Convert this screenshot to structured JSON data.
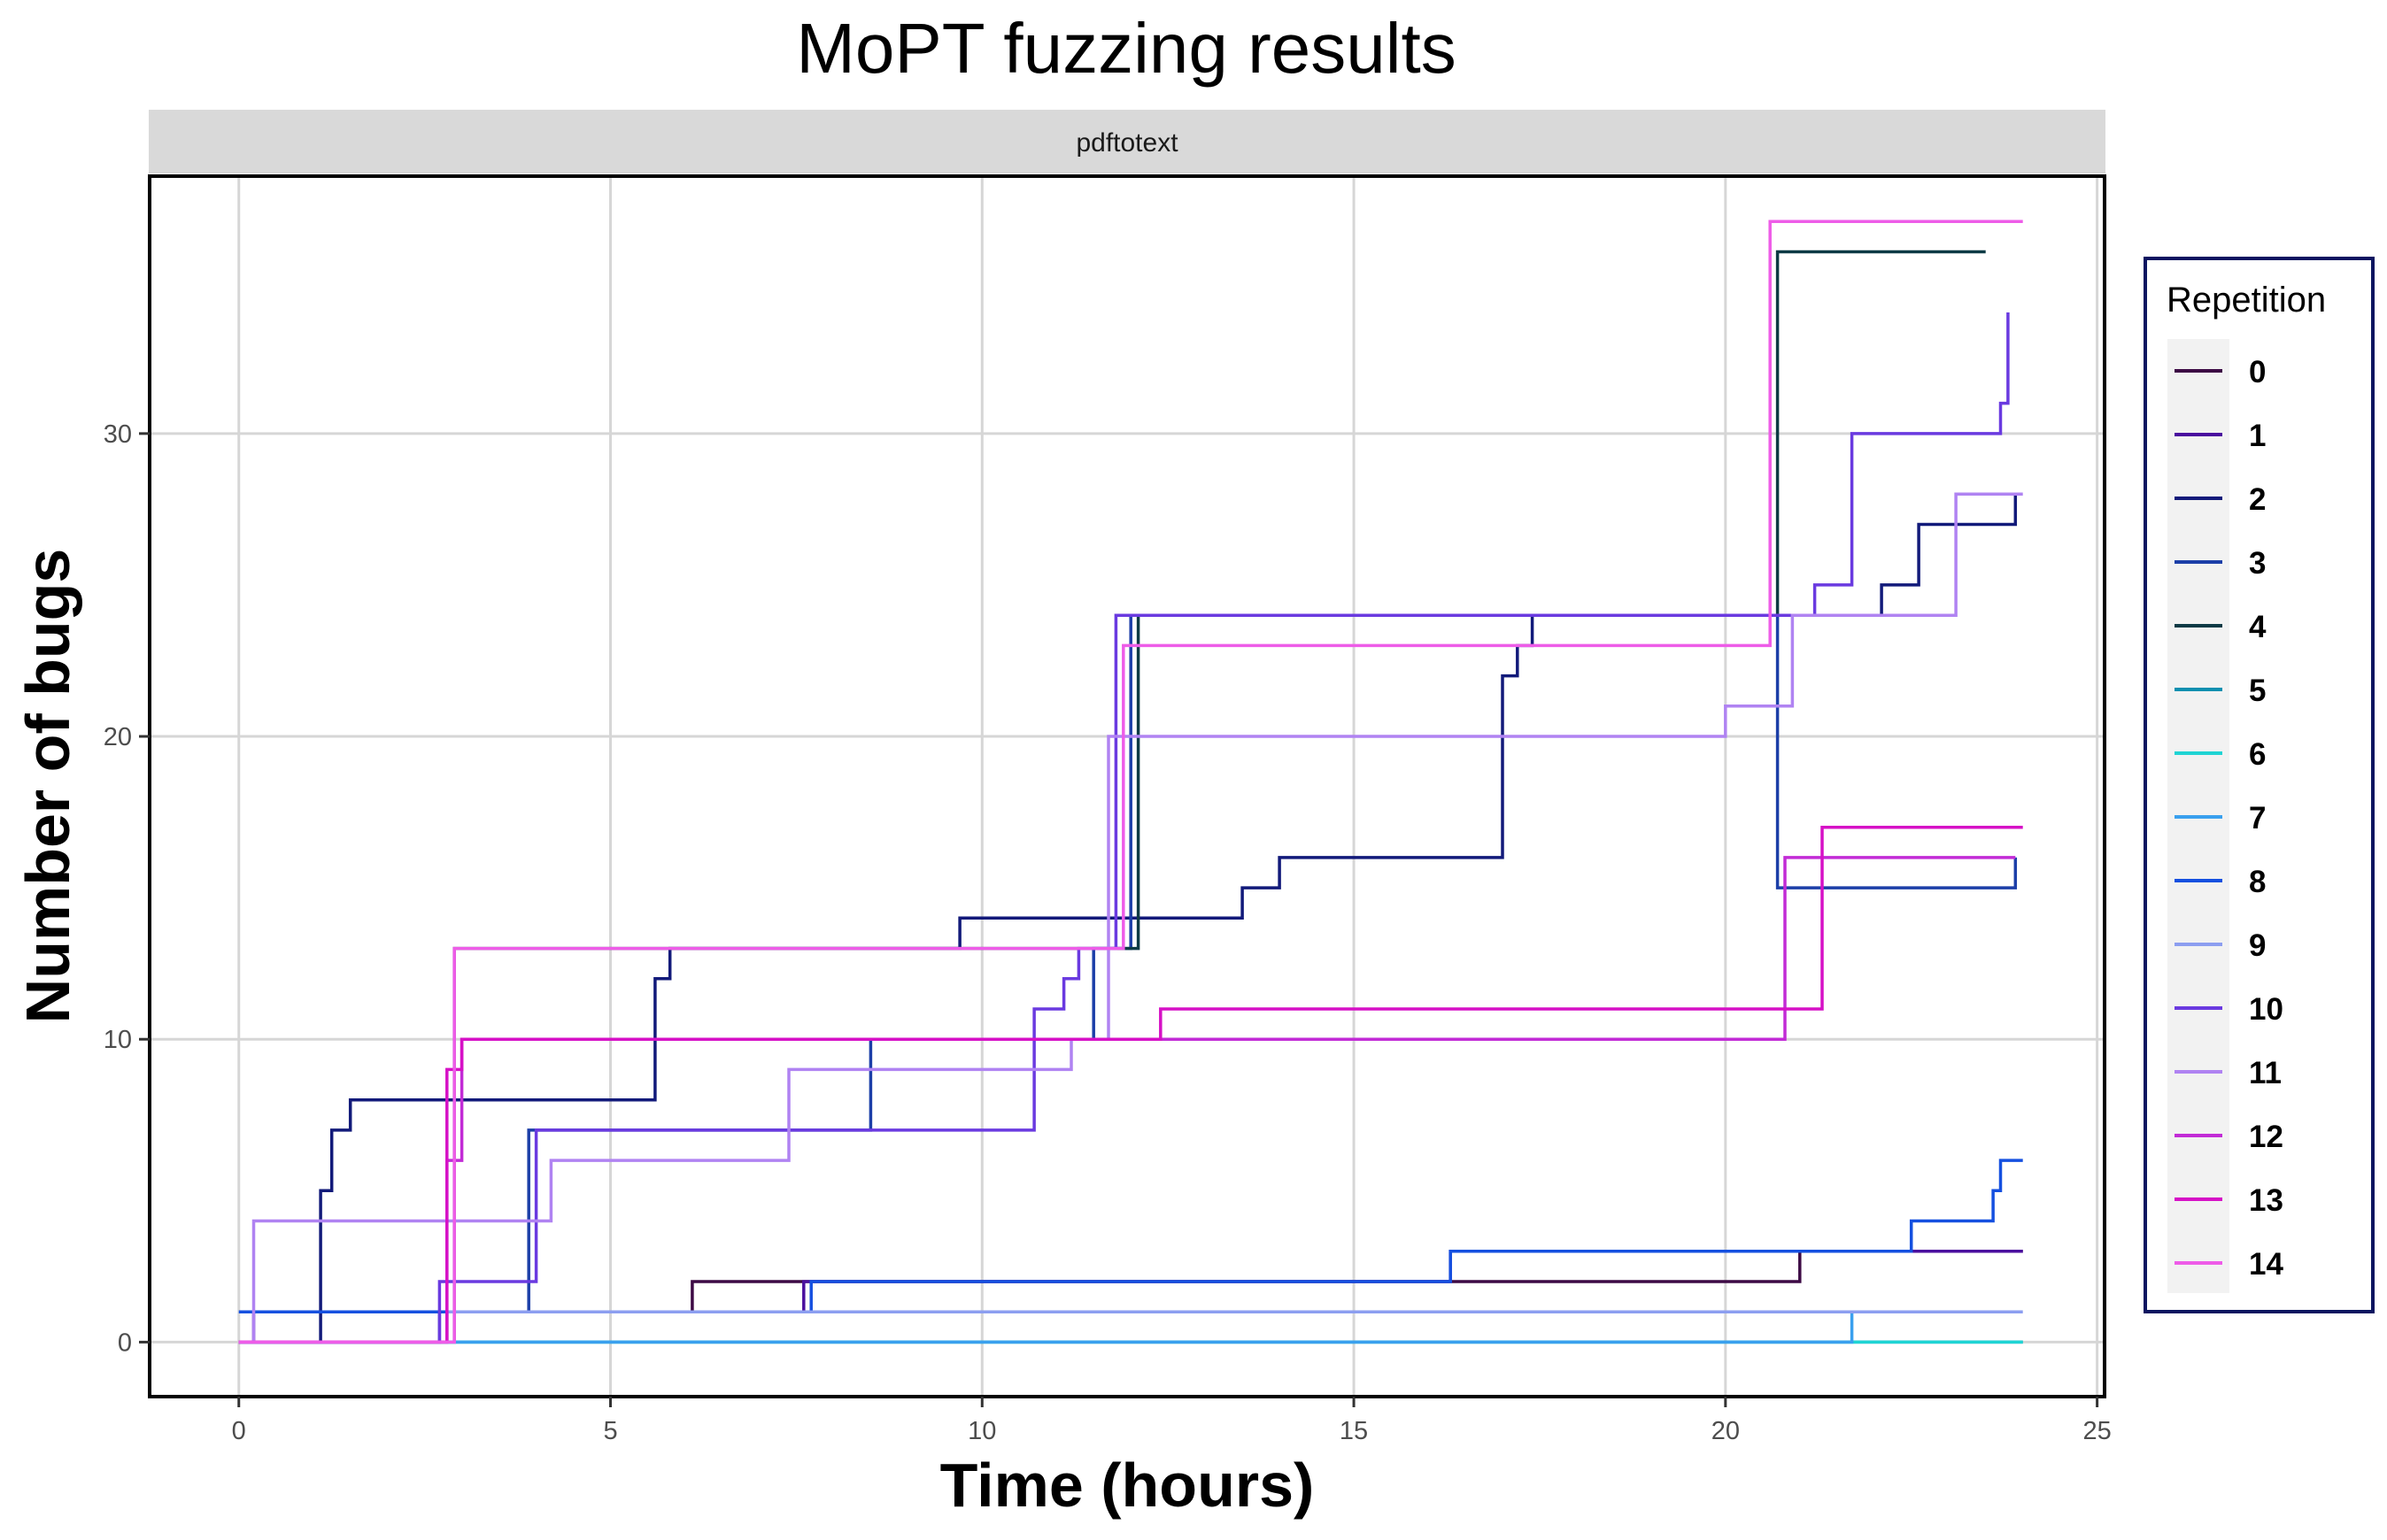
{
  "chart_data": {
    "type": "line",
    "step": true,
    "title": "MoPT fuzzing results",
    "facet_label": "pdftotext",
    "xlabel": "Time (hours)",
    "ylabel": "Number of bugs",
    "xlim": [
      -1.2,
      25.1
    ],
    "ylim": [
      -1.8,
      38.5
    ],
    "x_ticks": [
      0,
      5,
      10,
      15,
      20,
      25
    ],
    "y_ticks": [
      0,
      10,
      20,
      30
    ],
    "grid": true,
    "legend": {
      "title": "Repetition",
      "position": "right"
    },
    "series": [
      {
        "name": "0",
        "color": "#3d0a45",
        "points": [
          [
            0,
            0
          ],
          [
            2.8,
            1
          ],
          [
            6.1,
            2
          ],
          [
            21.0,
            3
          ],
          [
            24.0,
            3
          ]
        ]
      },
      {
        "name": "1",
        "color": "#4a0e9e",
        "points": [
          [
            0,
            0
          ],
          [
            0.2,
            1
          ],
          [
            7.6,
            2
          ],
          [
            16.3,
            3
          ],
          [
            24.0,
            3
          ]
        ]
      },
      {
        "name": "2",
        "color": "#121a7a",
        "points": [
          [
            0,
            0
          ],
          [
            1.1,
            5
          ],
          [
            1.25,
            7
          ],
          [
            1.5,
            8
          ],
          [
            5.6,
            12
          ],
          [
            5.8,
            13
          ],
          [
            9.7,
            14
          ],
          [
            13.5,
            15
          ],
          [
            14.0,
            16
          ],
          [
            17.0,
            22
          ],
          [
            17.2,
            23
          ],
          [
            17.4,
            24
          ],
          [
            22.1,
            25
          ],
          [
            22.6,
            27
          ],
          [
            23.9,
            28
          ]
        ]
      },
      {
        "name": "3",
        "color": "#1c3fa8",
        "points": [
          [
            0,
            0
          ],
          [
            2.7,
            1
          ],
          [
            3.9,
            7
          ],
          [
            8.5,
            10
          ],
          [
            11.5,
            13
          ],
          [
            12.0,
            24
          ],
          [
            20.7,
            15
          ],
          [
            23.9,
            16
          ]
        ]
      },
      {
        "name": "4",
        "color": "#0d3a45",
        "points": [
          [
            0,
            0
          ],
          [
            2.9,
            13
          ],
          [
            12.0,
            13
          ],
          [
            12.1,
            24
          ],
          [
            20.6,
            24
          ],
          [
            20.7,
            36
          ],
          [
            23.5,
            36
          ]
        ]
      },
      {
        "name": "5",
        "color": "#0b8fb0",
        "points": [
          [
            0,
            0
          ],
          [
            24.0,
            0
          ]
        ]
      },
      {
        "name": "6",
        "color": "#1fd4d4",
        "points": [
          [
            0,
            0
          ],
          [
            24.0,
            0
          ]
        ]
      },
      {
        "name": "7",
        "color": "#3aa0ee",
        "points": [
          [
            0,
            0
          ],
          [
            21.7,
            1
          ],
          [
            23.7,
            1
          ]
        ]
      },
      {
        "name": "8",
        "color": "#1550e0",
        "points": [
          [
            0,
            1
          ],
          [
            2.2,
            1
          ],
          [
            7.7,
            2
          ],
          [
            16.3,
            3
          ],
          [
            22.5,
            4
          ],
          [
            23.6,
            5
          ],
          [
            23.7,
            6
          ],
          [
            24.0,
            6
          ]
        ]
      },
      {
        "name": "9",
        "color": "#8c9ef0",
        "points": [
          [
            0,
            0
          ],
          [
            2.8,
            1
          ],
          [
            24.0,
            1
          ]
        ]
      },
      {
        "name": "10",
        "color": "#6a3ae0",
        "points": [
          [
            0,
            0
          ],
          [
            2.7,
            2
          ],
          [
            4.0,
            7
          ],
          [
            10.7,
            11
          ],
          [
            11.1,
            12
          ],
          [
            11.3,
            13
          ],
          [
            11.8,
            24
          ],
          [
            21.2,
            25
          ],
          [
            21.7,
            30
          ],
          [
            23.7,
            31
          ],
          [
            23.8,
            34
          ]
        ]
      },
      {
        "name": "11",
        "color": "#b083f2",
        "points": [
          [
            0,
            0
          ],
          [
            0.2,
            4
          ],
          [
            4.2,
            6
          ],
          [
            7.4,
            9
          ],
          [
            11.2,
            10
          ],
          [
            11.7,
            20
          ],
          [
            20.0,
            21
          ],
          [
            20.9,
            24
          ],
          [
            23.1,
            28
          ],
          [
            24.0,
            28
          ]
        ]
      },
      {
        "name": "12",
        "color": "#c22bd6",
        "points": [
          [
            0,
            0
          ],
          [
            2.8,
            6
          ],
          [
            3.0,
            10
          ],
          [
            8.7,
            10
          ],
          [
            20.8,
            16
          ],
          [
            23.9,
            16
          ]
        ]
      },
      {
        "name": "13",
        "color": "#d611c6",
        "points": [
          [
            0,
            0
          ],
          [
            2.8,
            9
          ],
          [
            3.0,
            10
          ],
          [
            12.4,
            11
          ],
          [
            21.3,
            17
          ],
          [
            24.0,
            17
          ]
        ]
      },
      {
        "name": "14",
        "color": "#ee5ce8",
        "points": [
          [
            0,
            0
          ],
          [
            2.9,
            13
          ],
          [
            11.9,
            23
          ],
          [
            20.6,
            37
          ],
          [
            24.0,
            37
          ]
        ]
      }
    ]
  }
}
